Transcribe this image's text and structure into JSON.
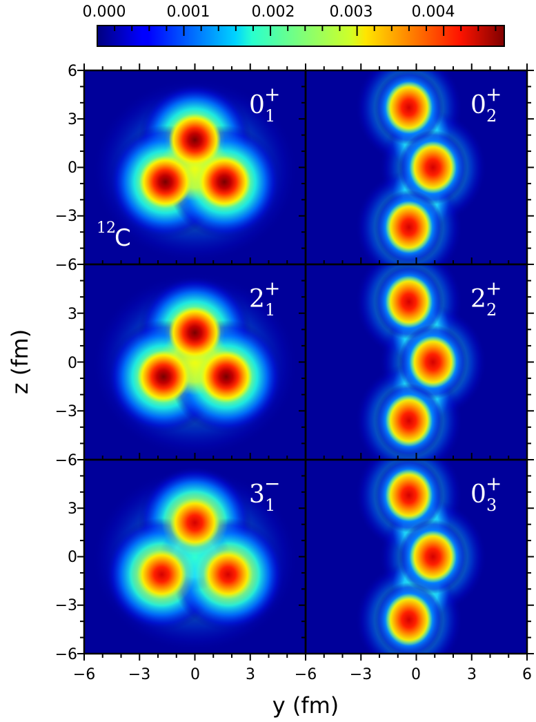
{
  "chart_data": {
    "type": "heatmap",
    "title": "",
    "xlabel": "y (fm)",
    "ylabel": "z (fm)",
    "xlim": [
      -6,
      6
    ],
    "ylim": [
      -6,
      6
    ],
    "x_ticks": [
      -6,
      -3,
      0,
      3,
      6
    ],
    "y_ticks": [
      -6,
      -3,
      0,
      3,
      6
    ],
    "x_tick_labels_left": [
      "−6",
      "−3",
      "0",
      "3"
    ],
    "x_tick_labels_right": [
      "−6",
      "−3",
      "0",
      "3",
      "6"
    ],
    "y_tick_labels": [
      "6",
      "3",
      "0",
      "−3",
      "−6"
    ],
    "grid": false,
    "layout": {
      "rows": 3,
      "cols": 2
    },
    "nucleus_label": {
      "mass": "12",
      "symbol": "C"
    },
    "colorbar": {
      "position": "top",
      "colormap": "jet",
      "range": [
        0.0,
        0.0047
      ],
      "tick_labels": [
        "0.000",
        "0.001",
        "0.002",
        "0.003",
        "0.004"
      ],
      "tick_values": [
        0.0,
        0.001,
        0.002,
        0.003,
        0.004
      ]
    },
    "panels": [
      {
        "state": "0",
        "sub": "1",
        "parity": "+",
        "row": 0,
        "col": 0,
        "shape": "triangle",
        "clusters": [
          {
            "y": 0.0,
            "z": 1.7,
            "peak": 0.0047
          },
          {
            "y": -1.6,
            "z": -0.9,
            "peak": 0.0047
          },
          {
            "y": 1.6,
            "z": -0.9,
            "peak": 0.0047
          }
        ]
      },
      {
        "state": "0",
        "sub": "2",
        "parity": "+",
        "row": 0,
        "col": 1,
        "shape": "bent-chain",
        "clusters": [
          {
            "y": -0.4,
            "z": 3.7,
            "peak": 0.0043
          },
          {
            "y": 0.9,
            "z": 0.0,
            "peak": 0.0047
          },
          {
            "y": -0.4,
            "z": -3.7,
            "peak": 0.0043
          }
        ]
      },
      {
        "state": "2",
        "sub": "1",
        "parity": "+",
        "row": 1,
        "col": 0,
        "shape": "triangle",
        "clusters": [
          {
            "y": 0.0,
            "z": 1.8,
            "peak": 0.0046
          },
          {
            "y": -1.7,
            "z": -0.9,
            "peak": 0.0046
          },
          {
            "y": 1.7,
            "z": -0.9,
            "peak": 0.0046
          }
        ]
      },
      {
        "state": "2",
        "sub": "2",
        "parity": "+",
        "row": 1,
        "col": 1,
        "shape": "bent-chain",
        "clusters": [
          {
            "y": -0.4,
            "z": 3.7,
            "peak": 0.0043
          },
          {
            "y": 0.9,
            "z": 0.0,
            "peak": 0.0046
          },
          {
            "y": -0.4,
            "z": -3.6,
            "peak": 0.0043
          }
        ]
      },
      {
        "state": "3",
        "sub": "1",
        "parity": "−",
        "row": 2,
        "col": 0,
        "shape": "triangle",
        "clusters": [
          {
            "y": 0.0,
            "z": 2.1,
            "peak": 0.0042
          },
          {
            "y": -1.8,
            "z": -1.1,
            "peak": 0.0042
          },
          {
            "y": 1.8,
            "z": -1.1,
            "peak": 0.0042
          }
        ]
      },
      {
        "state": "0",
        "sub": "3",
        "parity": "+",
        "row": 2,
        "col": 1,
        "shape": "bent-chain",
        "clusters": [
          {
            "y": -0.4,
            "z": 3.8,
            "peak": 0.0042
          },
          {
            "y": 0.9,
            "z": 0.0,
            "peak": 0.0043
          },
          {
            "y": -0.4,
            "z": -3.9,
            "peak": 0.0042
          }
        ]
      }
    ]
  }
}
